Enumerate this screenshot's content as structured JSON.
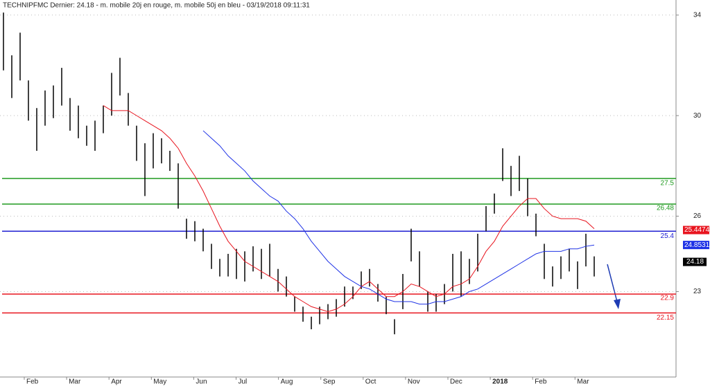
{
  "chart_data": {
    "type": "ohlc",
    "title": "TECHNIPFMC Dernier: 24.18 - m. mobile 20j en rouge, m. mobile 50j en bleu - 03/19/2018 09:11:31",
    "categories": [
      "Feb",
      "Mar",
      "Apr",
      "May",
      "Jun",
      "Jul",
      "Aug",
      "Sep",
      "Oct",
      "Nov",
      "Dec",
      "2018",
      "Feb",
      "Mar"
    ],
    "ylim": [
      19.6,
      34.6
    ],
    "yticks": [
      23,
      26,
      30,
      34
    ],
    "price": {
      "color": "#000000",
      "high": [
        34.1,
        32.4,
        33.3,
        31.4,
        30.3,
        31.0,
        31.2,
        31.9,
        30.7,
        30.4,
        29.6,
        29.8,
        30.4,
        31.7,
        32.3,
        30.9,
        29.6,
        28.9,
        29.3,
        29.1,
        28.6,
        28.1,
        25.9,
        25.8,
        25.5,
        24.9,
        24.3,
        24.5,
        24.7,
        24.6,
        24.8,
        24.7,
        24.9,
        23.9,
        23.6,
        22.8,
        22.4,
        22.0,
        22.4,
        22.5,
        22.7,
        23.2,
        23.2,
        23.8,
        23.9,
        23.3,
        22.8,
        21.9,
        23.7,
        25.5,
        24.6,
        23.0,
        22.9,
        23.3,
        24.5,
        24.6,
        24.3,
        25.3,
        26.4,
        26.9,
        28.7,
        28.0,
        28.4,
        27.5,
        26.1,
        24.9,
        24.0,
        24.4,
        24.7,
        24.2,
        25.3,
        24.4
      ],
      "low": [
        31.8,
        30.7,
        31.4,
        29.8,
        28.6,
        29.6,
        29.9,
        30.4,
        29.4,
        29.1,
        28.8,
        28.6,
        29.3,
        30.0,
        30.8,
        29.6,
        28.2,
        26.8,
        27.9,
        28.1,
        27.8,
        26.3,
        25.1,
        25.0,
        24.6,
        23.9,
        23.6,
        23.6,
        23.5,
        23.4,
        23.8,
        23.5,
        23.6,
        23.0,
        22.8,
        22.2,
        21.8,
        21.5,
        21.7,
        21.9,
        22.0,
        22.4,
        22.7,
        23.1,
        23.2,
        22.6,
        22.1,
        21.3,
        22.3,
        24.2,
        23.2,
        22.2,
        22.2,
        22.5,
        23.0,
        22.8,
        23.3,
        23.8,
        25.4,
        26.1,
        27.4,
        26.8,
        27.0,
        26.0,
        25.2,
        23.5,
        23.2,
        23.5,
        23.8,
        23.1,
        24.0,
        23.6
      ],
      "last": 24.18
    },
    "moving_averages": [
      {
        "color": "#e8141e",
        "last": 25.4474,
        "values": [
          null,
          null,
          null,
          null,
          null,
          null,
          null,
          null,
          null,
          null,
          null,
          null,
          30.4,
          30.2,
          30.2,
          30.2,
          30.0,
          29.8,
          29.6,
          29.4,
          29.1,
          28.7,
          28.1,
          27.6,
          27.0,
          26.3,
          25.6,
          25.0,
          24.6,
          24.2,
          24.0,
          23.8,
          23.6,
          23.4,
          23.1,
          22.8,
          22.6,
          22.4,
          22.3,
          22.2,
          22.3,
          22.5,
          22.8,
          23.2,
          23.4,
          23.1,
          22.8,
          22.8,
          23.0,
          23.3,
          23.2,
          23.0,
          22.8,
          22.9,
          23.2,
          23.3,
          23.5,
          24.0,
          24.6,
          25.0,
          25.6,
          26.0,
          26.4,
          26.7,
          26.7,
          26.3,
          26.0,
          25.9,
          25.9,
          25.9,
          25.8,
          25.5
        ]
      },
      {
        "color": "#1e32e6",
        "last": 24.8531,
        "values": [
          null,
          null,
          null,
          null,
          null,
          null,
          null,
          null,
          null,
          null,
          null,
          null,
          null,
          null,
          null,
          null,
          null,
          null,
          null,
          null,
          null,
          null,
          null,
          null,
          29.4,
          29.1,
          28.8,
          28.4,
          28.1,
          27.8,
          27.4,
          27.1,
          26.8,
          26.6,
          26.2,
          25.9,
          25.5,
          25.0,
          24.6,
          24.2,
          23.9,
          23.6,
          23.4,
          23.2,
          23.1,
          22.9,
          22.7,
          22.6,
          22.6,
          22.6,
          22.5,
          22.5,
          22.6,
          22.6,
          22.7,
          22.8,
          23.0,
          23.1,
          23.3,
          23.5,
          23.7,
          23.9,
          24.1,
          24.3,
          24.5,
          24.6,
          24.6,
          24.6,
          24.7,
          24.7,
          24.8,
          24.85
        ]
      }
    ],
    "levels": [
      {
        "value": 27.5,
        "color": "#1e9a1e"
      },
      {
        "value": 26.48,
        "color": "#1e9a1e"
      },
      {
        "value": 25.4,
        "color": "#1e1ed2"
      },
      {
        "value": 22.9,
        "color": "#e8141e"
      },
      {
        "value": 22.15,
        "color": "#e8141e"
      }
    ]
  }
}
